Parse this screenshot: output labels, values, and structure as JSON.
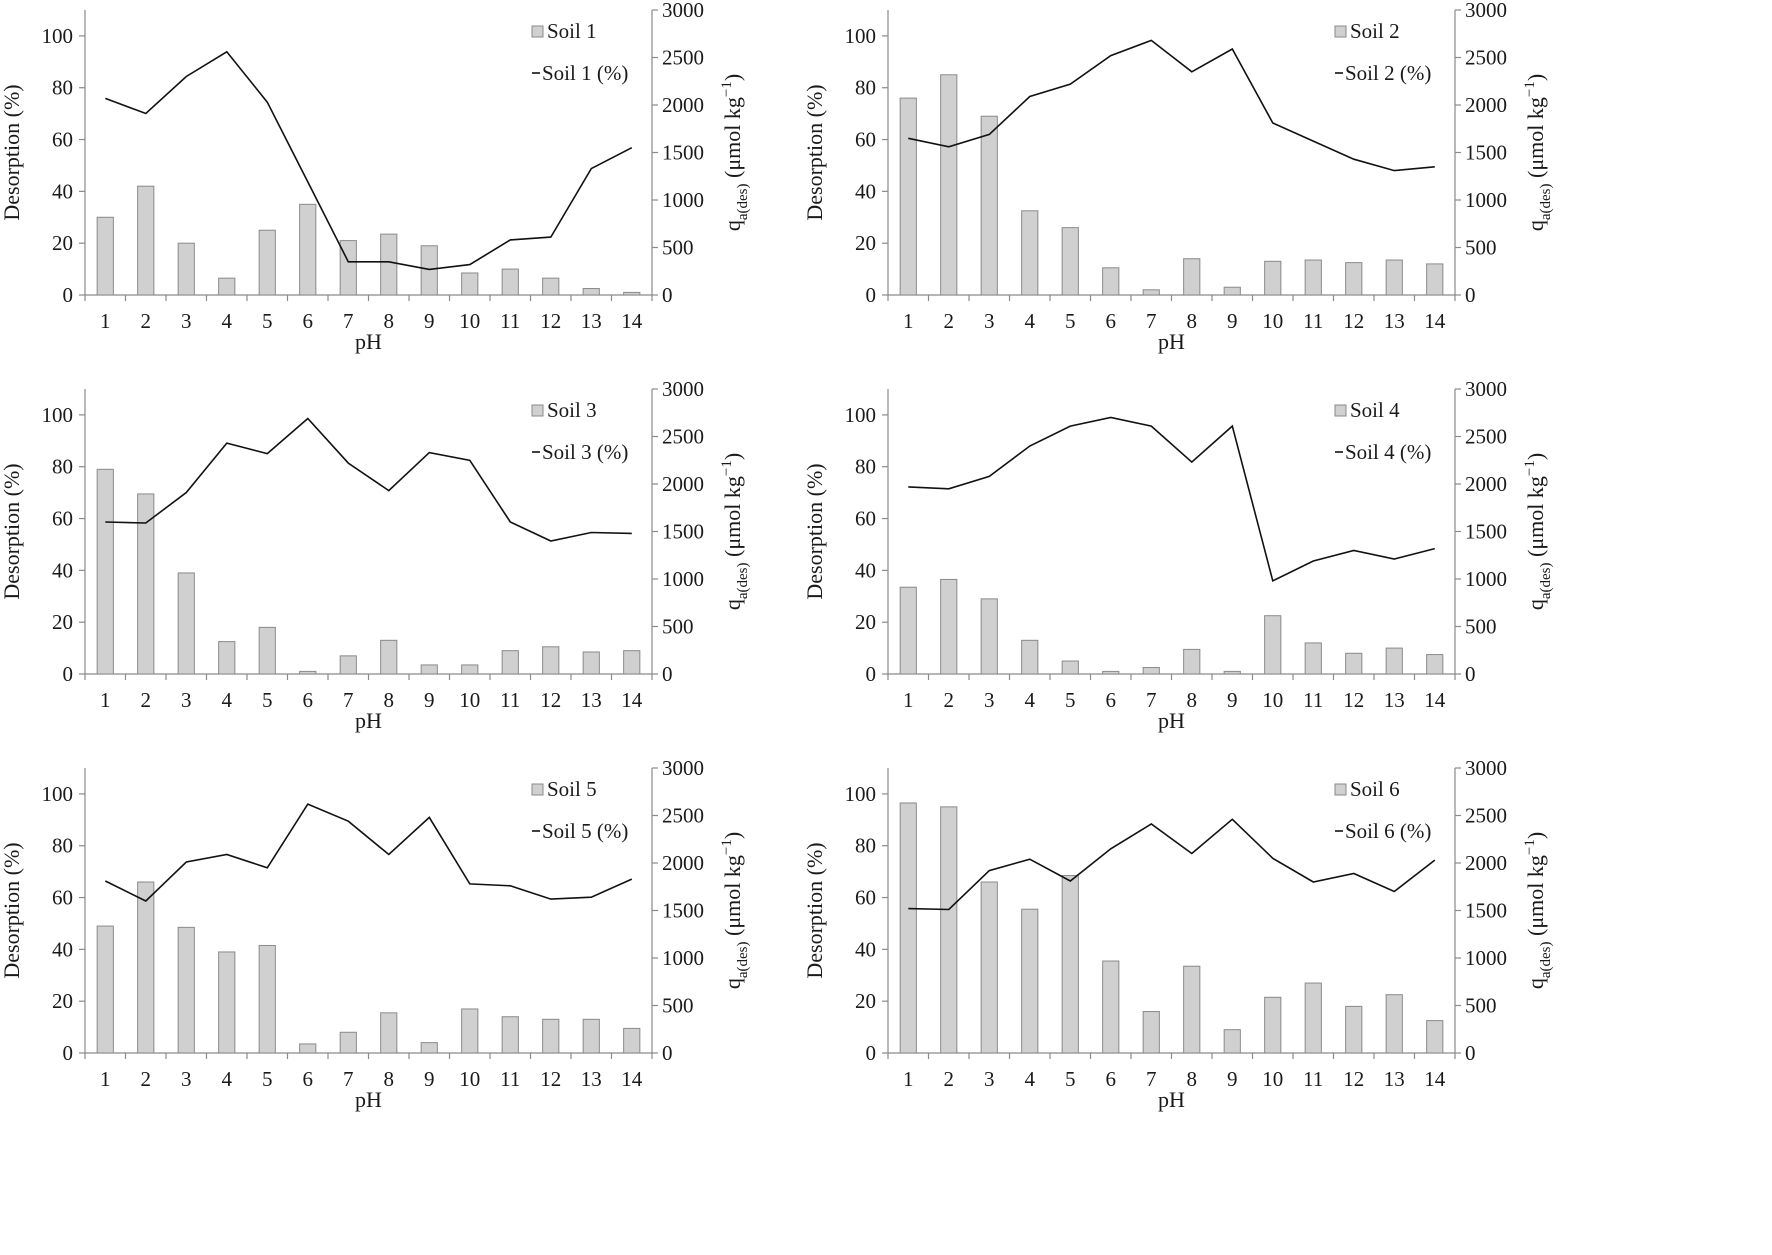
{
  "chart_data": [
    {
      "type": "bar",
      "combo": "bar+line",
      "title": "",
      "xlabel": "pH",
      "ylabel": "Desorption (%)",
      "ylabel2": "q",
      "ylabel2_sub": "a(des)",
      "ylabel2_unit": " (μmol kg",
      "ylabel2_exp": "−1",
      "ylabel2_close": ")",
      "ylim": [
        0,
        110
      ],
      "ylim2": [
        0,
        3000
      ],
      "yticks": [
        0,
        20,
        40,
        60,
        80,
        100
      ],
      "yticks2": [
        0,
        500,
        1000,
        1500,
        2000,
        2500,
        3000
      ],
      "legend_position": "top-right",
      "categories": [
        "1",
        "2",
        "3",
        "4",
        "5",
        "6",
        "7",
        "8",
        "9",
        "10",
        "11",
        "12",
        "13",
        "14"
      ],
      "series": [
        {
          "name": "Soil 1",
          "kind": "bar",
          "axis": "left",
          "values": [
            30,
            42,
            20,
            6.5,
            25,
            35,
            21,
            23.5,
            19,
            8.5,
            10,
            6.5,
            2.5,
            1
          ]
        },
        {
          "name": "Soil 1 (%)",
          "kind": "line",
          "axis": "right",
          "values": [
            2070,
            1910,
            2300,
            2560,
            2030,
            1190,
            350,
            350,
            270,
            320,
            580,
            610,
            1330,
            1550
          ]
        }
      ]
    },
    {
      "type": "bar",
      "combo": "bar+line",
      "title": "",
      "xlabel": "pH",
      "ylabel": "Desorption (%)",
      "ylabel2": "q",
      "ylabel2_sub": "a(des)",
      "ylabel2_unit": " (μmol kg",
      "ylabel2_exp": "−1",
      "ylabel2_close": ")",
      "ylim": [
        0,
        110
      ],
      "ylim2": [
        0,
        3000
      ],
      "yticks": [
        0,
        20,
        40,
        60,
        80,
        100
      ],
      "yticks2": [
        0,
        500,
        1000,
        1500,
        2000,
        2500,
        3000
      ],
      "legend_position": "top-right",
      "categories": [
        "1",
        "2",
        "3",
        "4",
        "5",
        "6",
        "7",
        "8",
        "9",
        "10",
        "11",
        "12",
        "13",
        "14"
      ],
      "series": [
        {
          "name": "Soil 2",
          "kind": "bar",
          "axis": "left",
          "values": [
            76,
            85,
            69,
            32.5,
            26,
            10.5,
            2,
            14,
            3,
            13,
            13.5,
            12.5,
            13.5,
            12
          ]
        },
        {
          "name": "Soil 2 (%)",
          "kind": "line",
          "axis": "right",
          "values": [
            1650,
            1560,
            1690,
            2090,
            2220,
            2520,
            2680,
            2350,
            2590,
            1810,
            1620,
            1430,
            1310,
            1350
          ]
        }
      ]
    },
    {
      "type": "bar",
      "combo": "bar+line",
      "title": "",
      "xlabel": "pH",
      "ylabel": "Desorption (%)",
      "ylabel2": "q",
      "ylabel2_sub": "a(des)",
      "ylabel2_unit": " (μmol kg",
      "ylabel2_exp": "−1",
      "ylabel2_close": ")",
      "ylim": [
        0,
        110
      ],
      "ylim2": [
        0,
        3000
      ],
      "yticks": [
        0,
        20,
        40,
        60,
        80,
        100
      ],
      "yticks2": [
        0,
        500,
        1000,
        1500,
        2000,
        2500,
        3000
      ],
      "legend_position": "top-right",
      "categories": [
        "1",
        "2",
        "3",
        "4",
        "5",
        "6",
        "7",
        "8",
        "9",
        "10",
        "11",
        "12",
        "13",
        "14"
      ],
      "series": [
        {
          "name": "Soil 3",
          "kind": "bar",
          "axis": "left",
          "values": [
            79,
            69.5,
            39,
            12.5,
            18,
            1,
            7,
            13,
            3.5,
            3.5,
            9,
            10.5,
            8.5,
            9
          ]
        },
        {
          "name": "Soil 3 (%)",
          "kind": "line",
          "axis": "right",
          "values": [
            1600,
            1590,
            1910,
            2430,
            2320,
            2690,
            2220,
            1930,
            2330,
            2250,
            1600,
            1400,
            1490,
            1480
          ]
        }
      ]
    },
    {
      "type": "bar",
      "combo": "bar+line",
      "title": "",
      "xlabel": "pH",
      "ylabel": "Desorption (%)",
      "ylabel2": "q",
      "ylabel2_sub": "a(des)",
      "ylabel2_unit": " (μmol kg",
      "ylabel2_exp": "−1",
      "ylabel2_close": ")",
      "ylim": [
        0,
        110
      ],
      "ylim2": [
        0,
        3000
      ],
      "yticks": [
        0,
        20,
        40,
        60,
        80,
        100
      ],
      "yticks2": [
        0,
        500,
        1000,
        1500,
        2000,
        2500,
        3000
      ],
      "legend_position": "top-right",
      "categories": [
        "1",
        "2",
        "3",
        "4",
        "5",
        "6",
        "7",
        "8",
        "9",
        "10",
        "11",
        "12",
        "13",
        "14"
      ],
      "series": [
        {
          "name": "Soil 4",
          "kind": "bar",
          "axis": "left",
          "values": [
            33.5,
            36.5,
            29,
            13,
            5,
            1,
            2.5,
            9.5,
            1,
            22.5,
            12,
            8,
            10,
            7.5
          ]
        },
        {
          "name": "Soil 4 (%)",
          "kind": "line",
          "axis": "right",
          "values": [
            1970,
            1950,
            2080,
            2400,
            2610,
            2700,
            2610,
            2230,
            2610,
            980,
            1190,
            1300,
            1210,
            1320
          ]
        }
      ]
    },
    {
      "type": "bar",
      "combo": "bar+line",
      "title": "",
      "xlabel": "pH",
      "ylabel": "Desorption (%)",
      "ylabel2": "q",
      "ylabel2_sub": "a(des)",
      "ylabel2_unit": " (μmol kg",
      "ylabel2_exp": "−1",
      "ylabel2_close": ")",
      "ylim": [
        0,
        110
      ],
      "ylim2": [
        0,
        3000
      ],
      "yticks": [
        0,
        20,
        40,
        60,
        80,
        100
      ],
      "yticks2": [
        0,
        500,
        1000,
        1500,
        2000,
        2500,
        3000
      ],
      "legend_position": "top-right",
      "categories": [
        "1",
        "2",
        "3",
        "4",
        "5",
        "6",
        "7",
        "8",
        "9",
        "10",
        "11",
        "12",
        "13",
        "14"
      ],
      "series": [
        {
          "name": "Soil 5",
          "kind": "bar",
          "axis": "left",
          "values": [
            49,
            66,
            48.5,
            39,
            41.5,
            3.5,
            8,
            15.5,
            4,
            17,
            14,
            13,
            13,
            9.5
          ]
        },
        {
          "name": "Soil 5 (%)",
          "kind": "line",
          "axis": "right",
          "values": [
            1810,
            1600,
            2010,
            2090,
            1950,
            2620,
            2440,
            2090,
            2480,
            1780,
            1760,
            1620,
            1640,
            1830
          ]
        }
      ]
    },
    {
      "type": "bar",
      "combo": "bar+line",
      "title": "",
      "xlabel": "pH",
      "ylabel": "Desorption (%)",
      "ylabel2": "q",
      "ylabel2_sub": "a(des)",
      "ylabel2_unit": " (μmol kg",
      "ylabel2_exp": "−1",
      "ylabel2_close": ")",
      "ylim": [
        0,
        110
      ],
      "ylim2": [
        0,
        3000
      ],
      "yticks": [
        0,
        20,
        40,
        60,
        80,
        100
      ],
      "yticks2": [
        0,
        500,
        1000,
        1500,
        2000,
        2500,
        3000
      ],
      "legend_position": "top-right",
      "categories": [
        "1",
        "2",
        "3",
        "4",
        "5",
        "6",
        "7",
        "8",
        "9",
        "10",
        "11",
        "12",
        "13",
        "14"
      ],
      "series": [
        {
          "name": "Soil 6",
          "kind": "bar",
          "axis": "left",
          "values": [
            96.5,
            95,
            66,
            55.5,
            68.5,
            35.5,
            16,
            33.5,
            9,
            21.5,
            27,
            18,
            22.5,
            12.5
          ]
        },
        {
          "name": "Soil 6 (%)",
          "kind": "line",
          "axis": "right",
          "values": [
            1520,
            1510,
            1920,
            2040,
            1810,
            2150,
            2410,
            2100,
            2460,
            2050,
            1800,
            1890,
            1700,
            2030
          ]
        }
      ]
    }
  ],
  "colors": {
    "bar_fill": "#d0d0d0",
    "bar_stroke": "#8a8a8a",
    "line": "#111111",
    "axis": "#8a8a8a",
    "text": "#1a1a1a"
  }
}
